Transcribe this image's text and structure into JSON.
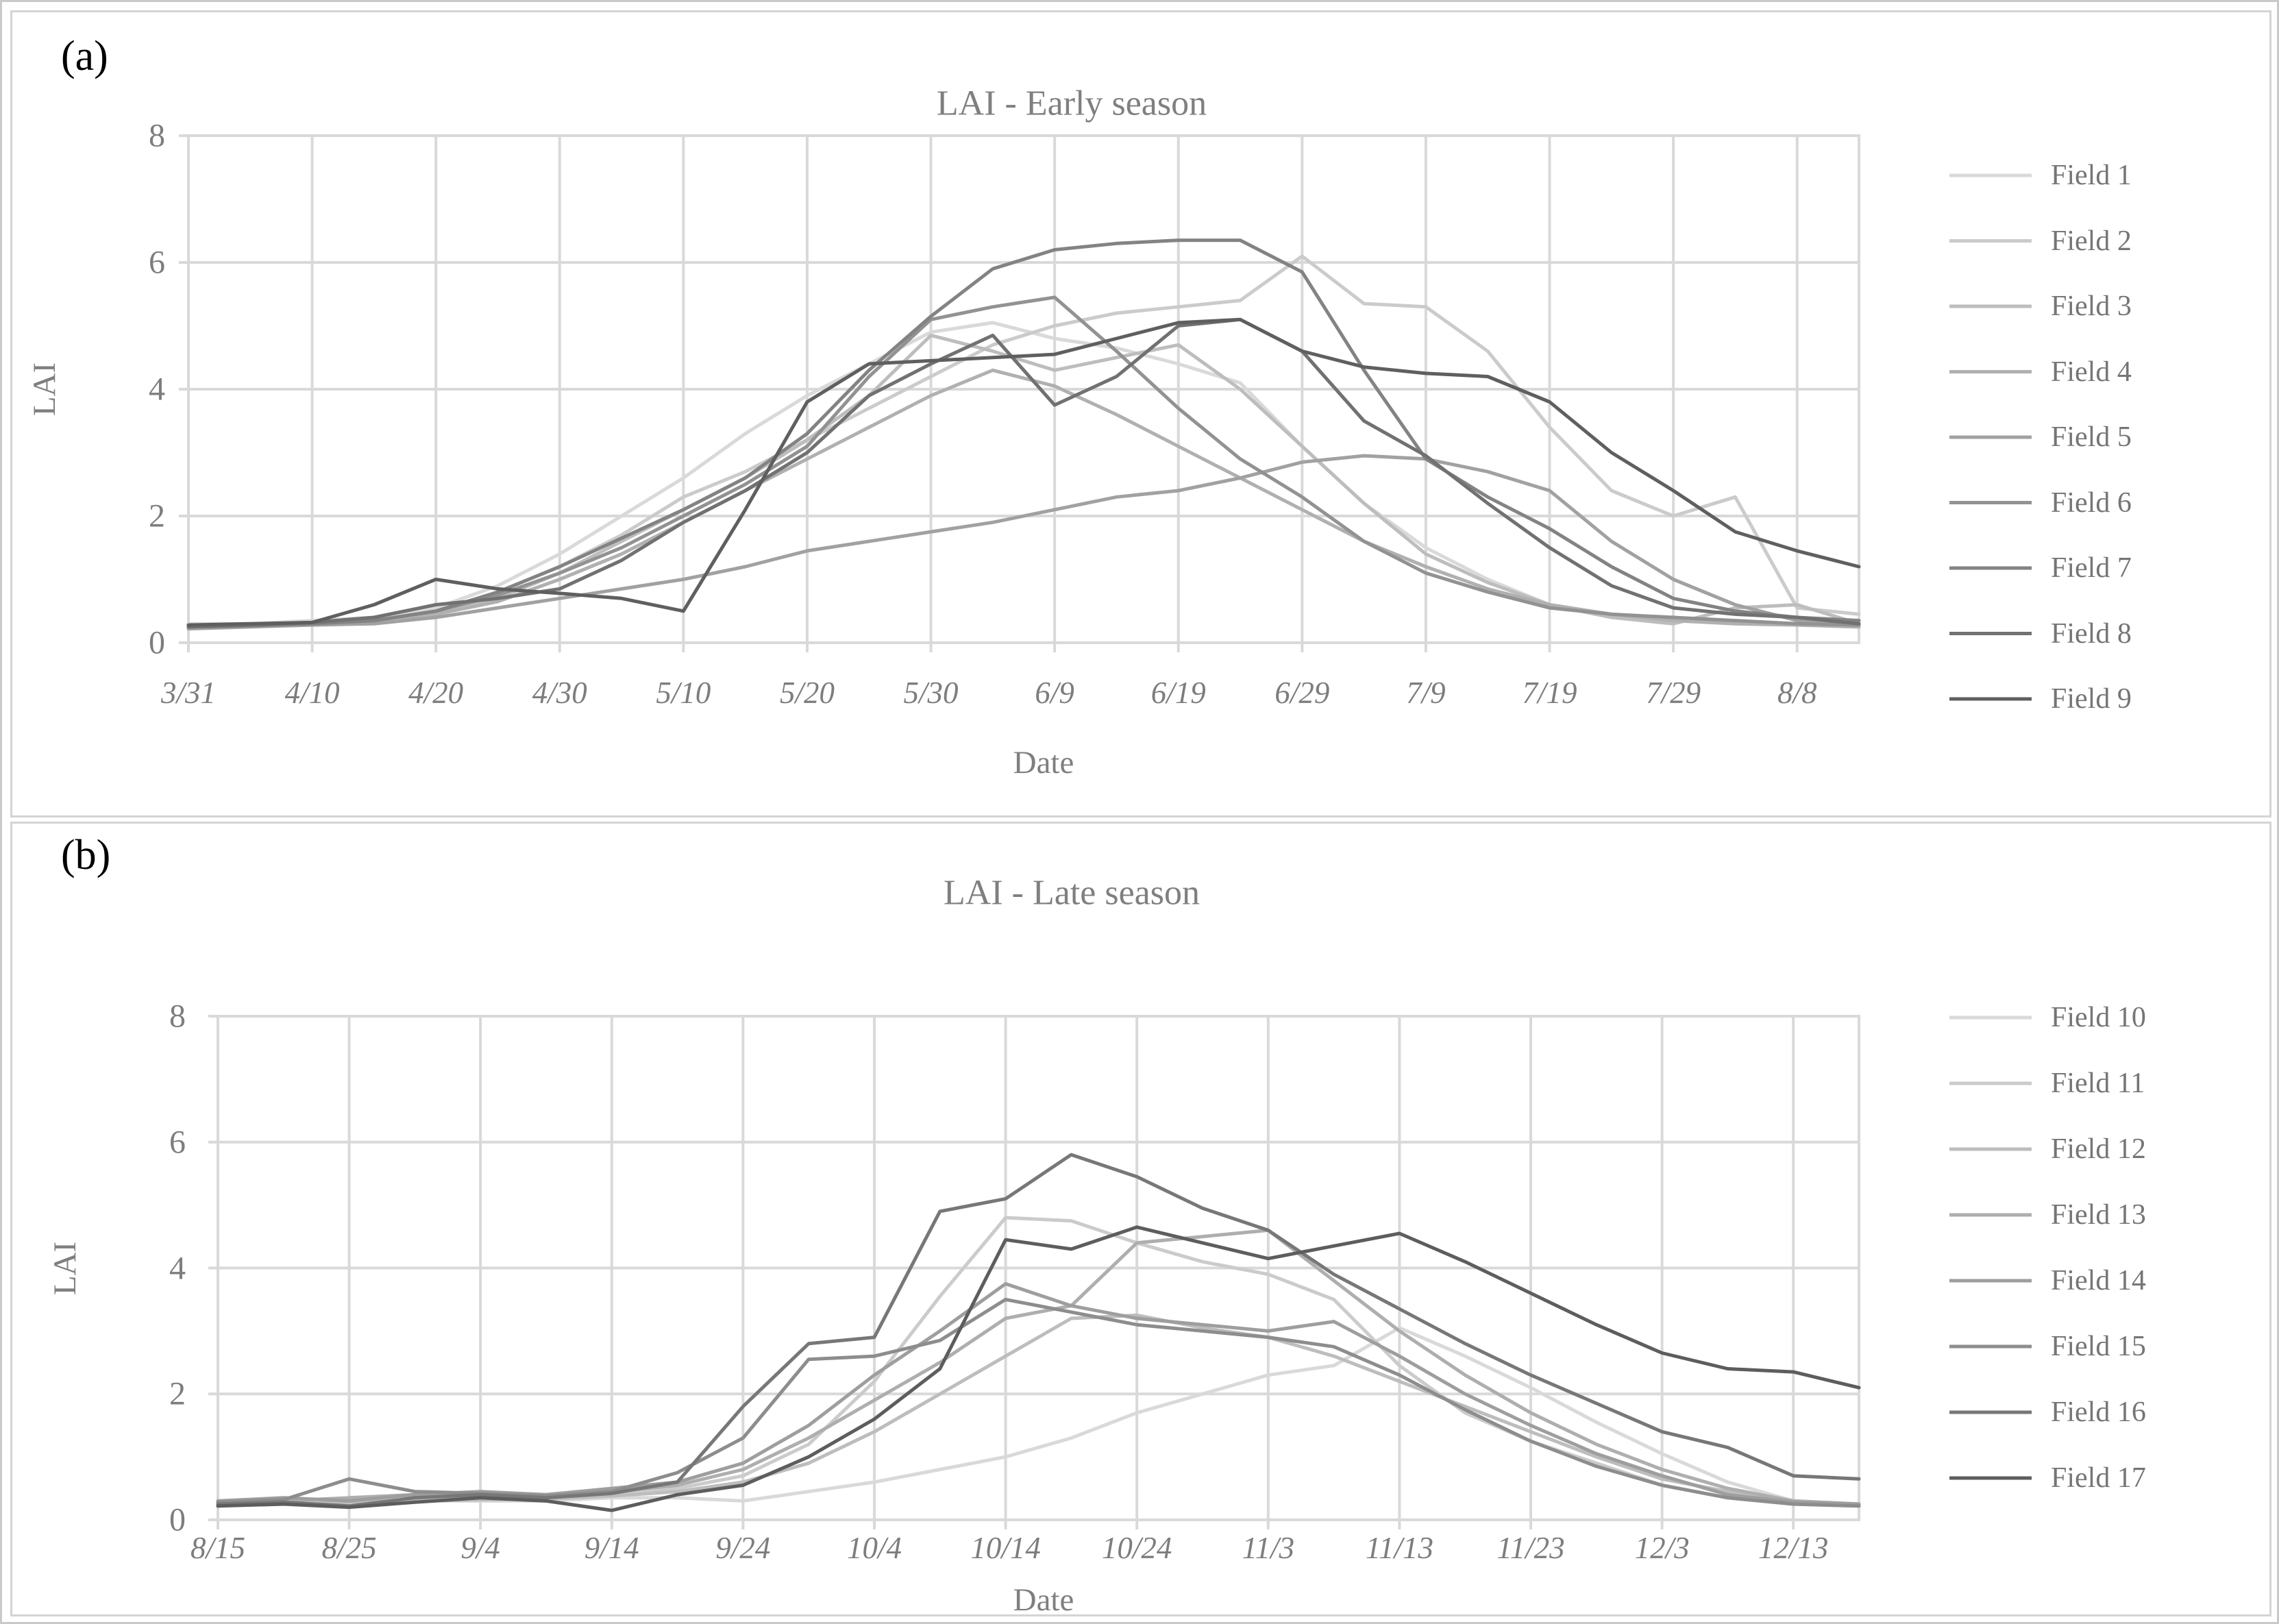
{
  "figure": {
    "background": "#ffffff",
    "grid_color": "#d9d9d9",
    "text_color": "#7f7f7f",
    "tick_text_color": "#7d7d7d",
    "legend_text_color": "#757575"
  },
  "chart_data": [
    {
      "panel_label": "(a)",
      "type": "line",
      "title": "LAI - Early season",
      "xlabel": "Date",
      "ylabel": "LAI",
      "ylim": [
        0,
        8
      ],
      "y_ticks": [
        0,
        2,
        4,
        6,
        8
      ],
      "grid": true,
      "legend_position": "right",
      "x": [
        "3/31",
        "4/5",
        "4/10",
        "4/15",
        "4/20",
        "4/25",
        "4/30",
        "5/5",
        "5/10",
        "5/15",
        "5/20",
        "5/25",
        "5/30",
        "6/4",
        "6/9",
        "6/14",
        "6/19",
        "6/24",
        "6/29",
        "7/4",
        "7/9",
        "7/14",
        "7/19",
        "7/24",
        "7/29",
        "8/3",
        "8/8",
        "8/13"
      ],
      "x_tick_labels": [
        "3/31",
        "4/10",
        "4/20",
        "4/30",
        "5/10",
        "5/20",
        "5/30",
        "6/9",
        "6/19",
        "6/29",
        "7/9",
        "7/19",
        "7/29",
        "8/8"
      ],
      "series": [
        {
          "name": "Field 1",
          "color": "#d9d9d9",
          "values": [
            0.3,
            0.3,
            0.35,
            0.4,
            0.55,
            0.9,
            1.4,
            2.0,
            2.6,
            3.3,
            3.9,
            4.4,
            4.9,
            5.05,
            4.8,
            4.65,
            4.4,
            4.1,
            3.1,
            2.2,
            1.5,
            1.0,
            0.6,
            0.45,
            0.35,
            0.3,
            0.3,
            0.25
          ]
        },
        {
          "name": "Field 2",
          "color": "#cbcbcb",
          "values": [
            0.25,
            0.28,
            0.3,
            0.35,
            0.5,
            0.8,
            1.2,
            1.7,
            2.3,
            2.7,
            3.2,
            3.7,
            4.2,
            4.7,
            5.0,
            5.2,
            5.3,
            5.4,
            6.1,
            5.35,
            5.3,
            4.6,
            3.4,
            2.4,
            2.0,
            2.3,
            0.55,
            0.45
          ]
        },
        {
          "name": "Field 3",
          "color": "#bdbdbd",
          "values": [
            0.25,
            0.28,
            0.3,
            0.35,
            0.45,
            0.7,
            1.1,
            1.6,
            2.1,
            2.6,
            3.2,
            3.9,
            4.85,
            4.6,
            4.3,
            4.5,
            4.7,
            4.0,
            3.1,
            2.2,
            1.4,
            0.95,
            0.6,
            0.4,
            0.3,
            0.55,
            0.6,
            0.3
          ]
        },
        {
          "name": "Field 4",
          "color": "#b0b0b0",
          "values": [
            0.25,
            0.27,
            0.3,
            0.33,
            0.45,
            0.65,
            1.0,
            1.4,
            1.9,
            2.4,
            2.9,
            3.4,
            3.9,
            4.3,
            4.05,
            3.6,
            3.1,
            2.6,
            2.1,
            1.6,
            1.2,
            0.85,
            0.6,
            0.45,
            0.35,
            0.3,
            0.28,
            0.25
          ]
        },
        {
          "name": "Field 5",
          "color": "#a1a1a1",
          "values": [
            0.22,
            0.25,
            0.28,
            0.3,
            0.4,
            0.55,
            0.7,
            0.85,
            1.0,
            1.2,
            1.45,
            1.6,
            1.75,
            1.9,
            2.1,
            2.3,
            2.4,
            2.6,
            2.85,
            2.95,
            2.9,
            2.7,
            2.4,
            1.6,
            1.0,
            0.6,
            0.35,
            0.3
          ]
        },
        {
          "name": "Field 6",
          "color": "#929292",
          "values": [
            0.25,
            0.27,
            0.3,
            0.35,
            0.5,
            0.75,
            1.1,
            1.5,
            2.0,
            2.5,
            3.1,
            4.2,
            5.1,
            5.3,
            5.45,
            4.6,
            3.7,
            2.9,
            2.3,
            1.6,
            1.1,
            0.8,
            0.55,
            0.45,
            0.4,
            0.35,
            0.3,
            0.28
          ]
        },
        {
          "name": "Field 7",
          "color": "#838383",
          "values": [
            0.25,
            0.27,
            0.3,
            0.35,
            0.5,
            0.8,
            1.2,
            1.65,
            2.1,
            2.6,
            3.3,
            4.3,
            5.15,
            5.9,
            6.2,
            6.3,
            6.35,
            6.35,
            5.85,
            4.3,
            2.9,
            2.3,
            1.8,
            1.2,
            0.7,
            0.5,
            0.4,
            0.35
          ]
        },
        {
          "name": "Field 8",
          "color": "#717171",
          "values": [
            0.25,
            0.28,
            0.32,
            0.4,
            0.6,
            0.7,
            0.85,
            1.3,
            1.9,
            2.4,
            3.0,
            3.9,
            4.4,
            4.85,
            3.75,
            4.2,
            5.0,
            5.1,
            4.6,
            3.5,
            2.95,
            2.2,
            1.5,
            0.9,
            0.55,
            0.45,
            0.4,
            0.3
          ]
        },
        {
          "name": "Field 9",
          "color": "#5f5f5f",
          "values": [
            0.28,
            0.3,
            0.32,
            0.6,
            1.0,
            0.85,
            0.78,
            0.7,
            0.5,
            2.1,
            3.8,
            4.4,
            4.45,
            4.5,
            4.55,
            4.8,
            5.05,
            5.1,
            4.6,
            4.35,
            4.25,
            4.2,
            3.8,
            3.0,
            2.4,
            1.75,
            1.45,
            1.2
          ]
        }
      ]
    },
    {
      "panel_label": "(b)",
      "type": "line",
      "title": "LAI - Late season",
      "xlabel": "Date",
      "ylabel": "LAI",
      "ylim": [
        0,
        8
      ],
      "y_ticks": [
        0,
        2,
        4,
        6,
        8
      ],
      "grid": true,
      "legend_position": "right",
      "x": [
        "8/15",
        "8/20",
        "8/25",
        "8/30",
        "9/4",
        "9/9",
        "9/14",
        "9/19",
        "9/24",
        "9/29",
        "10/4",
        "10/9",
        "10/14",
        "10/19",
        "10/24",
        "10/29",
        "11/3",
        "11/8",
        "11/13",
        "11/18",
        "11/23",
        "11/28",
        "12/3",
        "12/8",
        "12/13",
        "12/18"
      ],
      "x_tick_labels": [
        "8/15",
        "8/25",
        "9/4",
        "9/14",
        "9/24",
        "10/4",
        "10/14",
        "10/24",
        "11/3",
        "11/13",
        "11/23",
        "12/3",
        "12/13"
      ],
      "series": [
        {
          "name": "Field 10",
          "color": "#d9d9d9",
          "values": [
            0.25,
            0.25,
            0.28,
            0.3,
            0.3,
            0.3,
            0.35,
            0.35,
            0.3,
            0.45,
            0.6,
            0.8,
            1.0,
            1.3,
            1.7,
            2.0,
            2.3,
            2.45,
            3.05,
            2.6,
            2.1,
            1.55,
            1.05,
            0.6,
            0.3,
            0.25
          ]
        },
        {
          "name": "Field 11",
          "color": "#cbcbcb",
          "values": [
            0.25,
            0.28,
            0.3,
            0.32,
            0.35,
            0.35,
            0.4,
            0.5,
            0.7,
            1.2,
            2.2,
            3.55,
            4.8,
            4.75,
            4.4,
            4.1,
            3.9,
            3.5,
            2.45,
            1.7,
            1.25,
            0.9,
            0.55,
            0.35,
            0.25,
            0.22
          ]
        },
        {
          "name": "Field 12",
          "color": "#bdbdbd",
          "values": [
            0.22,
            0.25,
            0.28,
            0.3,
            0.32,
            0.33,
            0.38,
            0.45,
            0.6,
            0.9,
            1.4,
            2.0,
            2.6,
            3.2,
            3.25,
            3.05,
            2.9,
            2.6,
            2.2,
            1.8,
            1.4,
            1.0,
            0.65,
            0.45,
            0.3,
            0.25
          ]
        },
        {
          "name": "Field 13",
          "color": "#aeaeae",
          "values": [
            0.25,
            0.3,
            0.35,
            0.4,
            0.42,
            0.4,
            0.45,
            0.55,
            0.8,
            1.3,
            1.9,
            2.5,
            3.2,
            3.4,
            4.4,
            4.5,
            4.6,
            3.8,
            3.0,
            2.3,
            1.7,
            1.2,
            0.8,
            0.5,
            0.3,
            0.25
          ]
        },
        {
          "name": "Field 14",
          "color": "#9e9e9e",
          "values": [
            0.3,
            0.35,
            0.3,
            0.4,
            0.45,
            0.4,
            0.5,
            0.6,
            0.9,
            1.5,
            2.3,
            3.0,
            3.75,
            3.4,
            3.2,
            3.1,
            3.0,
            3.15,
            2.6,
            2.0,
            1.5,
            1.05,
            0.7,
            0.4,
            0.28,
            0.25
          ]
        },
        {
          "name": "Field 15",
          "color": "#8d8d8d",
          "values": [
            0.28,
            0.32,
            0.65,
            0.45,
            0.42,
            0.38,
            0.45,
            0.75,
            1.3,
            2.55,
            2.6,
            2.85,
            3.5,
            3.3,
            3.1,
            3.0,
            2.9,
            2.75,
            2.3,
            1.75,
            1.25,
            0.85,
            0.55,
            0.35,
            0.25,
            0.22
          ]
        },
        {
          "name": "Field 16",
          "color": "#777777",
          "values": [
            0.25,
            0.28,
            0.22,
            0.35,
            0.4,
            0.35,
            0.42,
            0.6,
            1.8,
            2.8,
            2.9,
            4.9,
            5.1,
            5.8,
            5.45,
            4.95,
            4.6,
            3.9,
            3.35,
            2.8,
            2.3,
            1.85,
            1.4,
            1.15,
            0.7,
            0.65
          ]
        },
        {
          "name": "Field 17",
          "color": "#5d5d5d",
          "values": [
            0.22,
            0.25,
            0.2,
            0.28,
            0.35,
            0.3,
            0.15,
            0.4,
            0.55,
            1.0,
            1.6,
            2.4,
            4.45,
            4.3,
            4.65,
            4.4,
            4.15,
            4.35,
            4.55,
            4.1,
            3.6,
            3.1,
            2.65,
            2.4,
            2.35,
            2.1
          ]
        }
      ]
    }
  ]
}
